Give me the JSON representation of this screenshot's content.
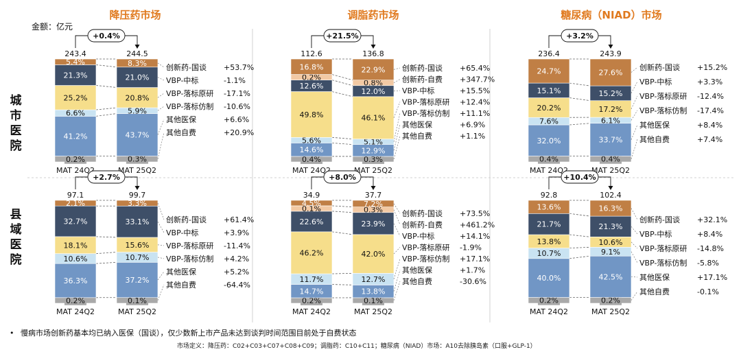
{
  "colors": {
    "innov_nego": "#C07F45",
    "innov_self": "#F2C9A4",
    "vbp_win": "#3E4F68",
    "vbp_orig": "#F6DE8B",
    "vbp_generic": "#C9E3F2",
    "other_ins": "#7196C5",
    "other_self": "#A9A9A9",
    "title": "#E07A1F"
  },
  "unit": "金额：亿元",
  "row_labels": [
    "城市医院",
    "县域医院"
  ],
  "column_titles": [
    "降压药市场",
    "调脂药市场",
    "糖尿病（NIAD）市场"
  ],
  "footnote": "慢病市场创新药基本均已纳入医保（国谈），仅少数新上市产品未达到谈判时间范围目前处于自费状态",
  "definition": "市场定义：降压药：C02+C03+C07+C08+C09；调脂药：C10+C11；糖尿病（NIAD）市场：A10去除胰岛素（口服+GLP-1）",
  "chart_data": [
    {
      "type": "bar",
      "panel": "city-hypertension",
      "categories": [
        "MAT 24Q2",
        "MAT 25Q2"
      ],
      "totals": [
        "243.4",
        "244.5"
      ],
      "growth": "+0.4%",
      "series": [
        {
          "key": "other_self",
          "name": "其他自费",
          "values": [
            "0.2%",
            "0.3%"
          ],
          "change": "+20.9%"
        },
        {
          "key": "other_ins",
          "name": "其他医保",
          "values": [
            "41.2%",
            "43.7%"
          ],
          "change": "+6.6%"
        },
        {
          "key": "vbp_generic",
          "name": "VBP-落标仿制",
          "values": [
            "6.6%",
            "5.9%"
          ],
          "change": "-10.6%"
        },
        {
          "key": "vbp_orig",
          "name": "VBP-落标原研",
          "values": [
            "25.2%",
            "20.8%"
          ],
          "change": "-17.1%"
        },
        {
          "key": "vbp_win",
          "name": "VBP-中标",
          "values": [
            "21.3%",
            "21.0%"
          ],
          "change": "-1.1%"
        },
        {
          "key": "innov_nego",
          "name": "创新药-国谈",
          "values": [
            "5.4%",
            "8.3%"
          ],
          "change": "+53.7%"
        }
      ]
    },
    {
      "type": "bar",
      "panel": "city-lipid",
      "categories": [
        "MAT 24Q2",
        "MAT 25Q2"
      ],
      "totals": [
        "112.6",
        "136.8"
      ],
      "growth": "+21.5%",
      "series": [
        {
          "key": "other_self",
          "name": "其他自费",
          "values": [
            "0.4%",
            "0.3%"
          ],
          "change": "+1.1%"
        },
        {
          "key": "other_ins",
          "name": "其他医保",
          "values": [
            "14.6%",
            "12.9%"
          ],
          "change": "+6.9%"
        },
        {
          "key": "vbp_generic",
          "name": "VBP-落标仿制",
          "values": [
            "5.6%",
            "5.1%"
          ],
          "change": "+11.1%"
        },
        {
          "key": "vbp_orig",
          "name": "VBP-落标原研",
          "values": [
            "49.8%",
            "46.1%"
          ],
          "change": "+12.4%"
        },
        {
          "key": "vbp_win",
          "name": "VBP-中标",
          "values": [
            "12.6%",
            "12.0%"
          ],
          "change": "+15.5%"
        },
        {
          "key": "innov_self",
          "name": "创新药-自费",
          "values": [
            "0.2%",
            "0.8%"
          ],
          "change": "+347.7%"
        },
        {
          "key": "innov_nego",
          "name": "创新药-国谈",
          "values": [
            "16.8%",
            "22.9%"
          ],
          "change": "+65.4%"
        }
      ]
    },
    {
      "type": "bar",
      "panel": "city-diabetes",
      "categories": [
        "MAT 24Q2",
        "MAT 25Q2"
      ],
      "totals": [
        "236.4",
        "243.9"
      ],
      "growth": "+3.2%",
      "series": [
        {
          "key": "other_self",
          "name": "其他自费",
          "values": [
            "0.4%",
            "0.4%"
          ],
          "change": "+7.4%"
        },
        {
          "key": "other_ins",
          "name": "其他医保",
          "values": [
            "32.0%",
            "33.7%"
          ],
          "change": "+8.4%"
        },
        {
          "key": "vbp_generic",
          "name": "VBP-落标仿制",
          "values": [
            "7.6%",
            "6.1%"
          ],
          "change": "-17.4%"
        },
        {
          "key": "vbp_orig",
          "name": "VBP-落标原研",
          "values": [
            "20.2%",
            "17.2%"
          ],
          "change": "-12.4%"
        },
        {
          "key": "vbp_win",
          "name": "VBP-中标",
          "values": [
            "15.1%",
            "15.2%"
          ],
          "change": "+3.3%"
        },
        {
          "key": "innov_nego",
          "name": "创新药-国谈",
          "values": [
            "24.7%",
            "27.6%"
          ],
          "change": "+15.2%"
        }
      ]
    },
    {
      "type": "bar",
      "panel": "county-hypertension",
      "categories": [
        "MAT 24Q2",
        "MAT 25Q2"
      ],
      "totals": [
        "97.1",
        "99.7"
      ],
      "growth": "+2.7%",
      "series": [
        {
          "key": "other_self",
          "name": "其他自费",
          "values": [
            "0.2%",
            "0.1%"
          ],
          "change": "-64.4%"
        },
        {
          "key": "other_ins",
          "name": "其他医保",
          "values": [
            "36.3%",
            "37.2%"
          ],
          "change": "+5.2%"
        },
        {
          "key": "vbp_generic",
          "name": "VBP-落标仿制",
          "values": [
            "10.6%",
            "10.7%"
          ],
          "change": "+4.2%"
        },
        {
          "key": "vbp_orig",
          "name": "VBP-落标原研",
          "values": [
            "18.1%",
            "15.6%"
          ],
          "change": "-11.4%"
        },
        {
          "key": "vbp_win",
          "name": "VBP-中标",
          "values": [
            "32.7%",
            "33.1%"
          ],
          "change": "+3.9%"
        },
        {
          "key": "innov_nego",
          "name": "创新药-国谈",
          "values": [
            "2.1%",
            "3.3%"
          ],
          "change": "+61.4%"
        }
      ]
    },
    {
      "type": "bar",
      "panel": "county-lipid",
      "categories": [
        "MAT 24Q2",
        "MAT 25Q2"
      ],
      "totals": [
        "34.9",
        "37.7"
      ],
      "growth": "+8.0%",
      "series": [
        {
          "key": "other_self",
          "name": "其他自费",
          "values": [
            "0.2%",
            "0.1%"
          ],
          "change": "-30.6%"
        },
        {
          "key": "other_ins",
          "name": "其他医保",
          "values": [
            "14.7%",
            "13.8%"
          ],
          "change": "+1.7%"
        },
        {
          "key": "vbp_generic",
          "name": "VBP-落标仿制",
          "values": [
            "11.7%",
            "12.7%"
          ],
          "change": "+17.1%"
        },
        {
          "key": "vbp_orig",
          "name": "VBP-落标原研",
          "values": [
            "46.2%",
            "42.0%"
          ],
          "change": "-1.9%"
        },
        {
          "key": "vbp_win",
          "name": "VBP-中标",
          "values": [
            "22.6%",
            "23.9%"
          ],
          "change": "+14.1%"
        },
        {
          "key": "innov_self",
          "name": "创新药-自费",
          "values": [
            "0.1%",
            "0.3%"
          ],
          "change": "+461.2%"
        },
        {
          "key": "innov_nego",
          "name": "创新药-国谈",
          "values": [
            "4.5%",
            "7.2%"
          ],
          "change": "+73.5%"
        }
      ]
    },
    {
      "type": "bar",
      "panel": "county-diabetes",
      "categories": [
        "MAT 24Q2",
        "MAT 25Q2"
      ],
      "totals": [
        "92.8",
        "102.4"
      ],
      "growth": "+10.4%",
      "series": [
        {
          "key": "other_self",
          "name": "其他自费",
          "values": [
            "0.2%",
            "0.2%"
          ],
          "change": "-0.1%"
        },
        {
          "key": "other_ins",
          "name": "其他医保",
          "values": [
            "40.0%",
            "42.5%"
          ],
          "change": "+17.1%"
        },
        {
          "key": "vbp_generic",
          "name": "VBP-落标仿制",
          "values": [
            "10.7%",
            "9.1%"
          ],
          "change": "-5.8%"
        },
        {
          "key": "vbp_orig",
          "name": "VBP-落标原研",
          "values": [
            "13.8%",
            "10.6%"
          ],
          "change": "-14.8%"
        },
        {
          "key": "vbp_win",
          "name": "VBP-中标",
          "values": [
            "21.7%",
            "21.3%"
          ],
          "change": "+8.4%"
        },
        {
          "key": "innov_nego",
          "name": "创新药-国谈",
          "values": [
            "13.6%",
            "16.3%"
          ],
          "change": "+32.1%"
        }
      ]
    }
  ]
}
